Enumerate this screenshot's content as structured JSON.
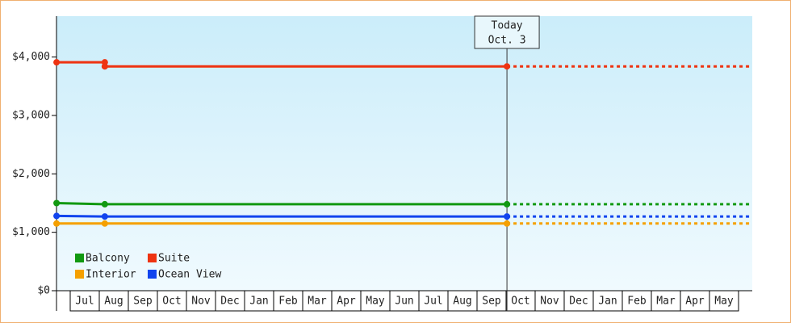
{
  "chart_data": {
    "type": "line",
    "categories": [
      "Jul",
      "Aug",
      "Sep",
      "Oct",
      "Nov",
      "Dec",
      "Jan",
      "Feb",
      "Mar",
      "Apr",
      "May",
      "Jun",
      "Jul",
      "Aug",
      "Sep",
      "Oct",
      "Nov",
      "Dec",
      "Jan",
      "Feb",
      "Mar",
      "Apr",
      "May"
    ],
    "xlim": [
      -0.5,
      23.5
    ],
    "ylim": [
      0,
      4700
    ],
    "yticks": [
      {
        "value": 0,
        "label": "$0"
      },
      {
        "value": 1000,
        "label": "$1,000"
      },
      {
        "value": 2000,
        "label": "$2,000"
      },
      {
        "value": 3000,
        "label": "$3,000"
      },
      {
        "value": 4000,
        "label": "$4,000"
      }
    ],
    "series": [
      {
        "name": "Balcony",
        "color": "#119911",
        "x": [
          -0.47,
          1.19,
          15.03
        ],
        "values": [
          1500,
          1480,
          1480
        ]
      },
      {
        "name": "Suite",
        "color": "#ee3311",
        "x": [
          -0.47,
          1.19,
          1.19,
          15.03
        ],
        "values": [
          3910,
          3910,
          3840,
          3840
        ]
      },
      {
        "name": "Interior",
        "color": "#f5a000",
        "x": [
          -0.47,
          1.19,
          15.03
        ],
        "values": [
          1150,
          1150,
          1150
        ]
      },
      {
        "name": "Ocean View",
        "color": "#1144ee",
        "x": [
          -0.47,
          1.19,
          15.03
        ],
        "values": [
          1280,
          1270,
          1270
        ]
      }
    ],
    "annotation": {
      "x": 15.03,
      "lines": [
        "Today",
        "Oct. 3"
      ]
    },
    "legend": "lower left"
  }
}
